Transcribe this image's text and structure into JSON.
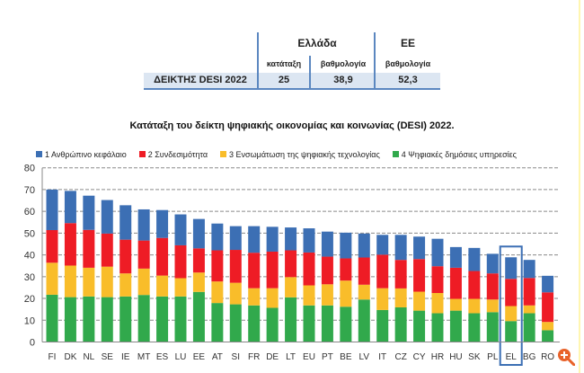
{
  "table": {
    "group_greece": "Ελλάδα",
    "group_eu": "ΕΕ",
    "col_rank": "κατάταξη",
    "col_score": "βαθμολογία",
    "col_eu_score": "βαθμολογία",
    "row_label": "ΔΕΙΚΤΗΣ DESI 2022",
    "greece_rank": "25",
    "greece_score": "38,9",
    "eu_score": "52,3"
  },
  "colors": {
    "blue": "#3c6fb4",
    "red": "#ee1c25",
    "yellow": "#f9bd2a",
    "green": "#31a94c",
    "highlight": "#3c6fb4"
  },
  "icons": {
    "zoom": "zoom-in-icon"
  },
  "chart_data": {
    "type": "bar",
    "stacked": true,
    "title": "Κατάταξη του δείκτη ψηφιακής οικονομίας και κοινωνίας (DESI) 2022.",
    "legend_position": "top",
    "grid": true,
    "ylim": [
      0,
      80
    ],
    "yticks": [
      0,
      10,
      20,
      30,
      40,
      50,
      60,
      70,
      80
    ],
    "highlight": "EL",
    "categories": [
      "FI",
      "DK",
      "NL",
      "SE",
      "IE",
      "MT",
      "ES",
      "LU",
      "EE",
      "AT",
      "SI",
      "FR",
      "DE",
      "LT",
      "EU",
      "PT",
      "BE",
      "LV",
      "IT",
      "CZ",
      "CY",
      "HR",
      "HU",
      "SK",
      "PL",
      "EL",
      "BG",
      "RO"
    ],
    "series": [
      {
        "name": "4 Ψηφιακές δημόσιες υπηρεσίες",
        "color": "#31a94c",
        "values": [
          21.7,
          20.6,
          20.9,
          20.6,
          20.9,
          21.6,
          20.9,
          20.9,
          23.0,
          17.9,
          17.3,
          16.8,
          15.7,
          20.5,
          16.8,
          16.8,
          16.2,
          19.5,
          14.7,
          15.9,
          14.4,
          13.2,
          14.4,
          13.2,
          13.7,
          9.6,
          13.2,
          5.4
        ]
      },
      {
        "name": "3 Ενσωμάτωση της ψηφιακής τεχνολογίας",
        "color": "#f9bd2a",
        "values": [
          14.7,
          14.5,
          13.2,
          14.0,
          10.6,
          12.1,
          9.6,
          8.4,
          8.9,
          9.9,
          9.9,
          7.9,
          9.0,
          9.3,
          9.2,
          9.7,
          12.0,
          6.8,
          10.0,
          8.7,
          8.7,
          9.3,
          5.4,
          6.6,
          5.8,
          6.9,
          3.6,
          3.8
        ]
      },
      {
        "name": "2 Συνδεσιμότητα",
        "color": "#ee1c25",
        "values": [
          15.0,
          19.5,
          17.4,
          15.2,
          15.5,
          12.9,
          17.3,
          15.1,
          11.1,
          14.3,
          15.1,
          16.3,
          16.8,
          12.3,
          15.1,
          12.7,
          10.2,
          12.5,
          15.4,
          13.1,
          15.0,
          12.3,
          14.3,
          12.8,
          12.0,
          12.5,
          12.6,
          13.6
        ]
      },
      {
        "name": "1 Ανθρώπινο κεφάλαιο",
        "color": "#3c6fb4",
        "values": [
          18.6,
          14.8,
          15.7,
          15.4,
          15.8,
          14.3,
          12.8,
          14.2,
          13.5,
          12.3,
          10.9,
          12.2,
          11.4,
          10.5,
          11.1,
          11.5,
          11.8,
          11.0,
          9.1,
          11.5,
          10.3,
          12.6,
          9.5,
          10.6,
          9.0,
          9.9,
          8.3,
          7.6
        ]
      }
    ],
    "legend_order": [
      3,
      2,
      1,
      0
    ]
  }
}
